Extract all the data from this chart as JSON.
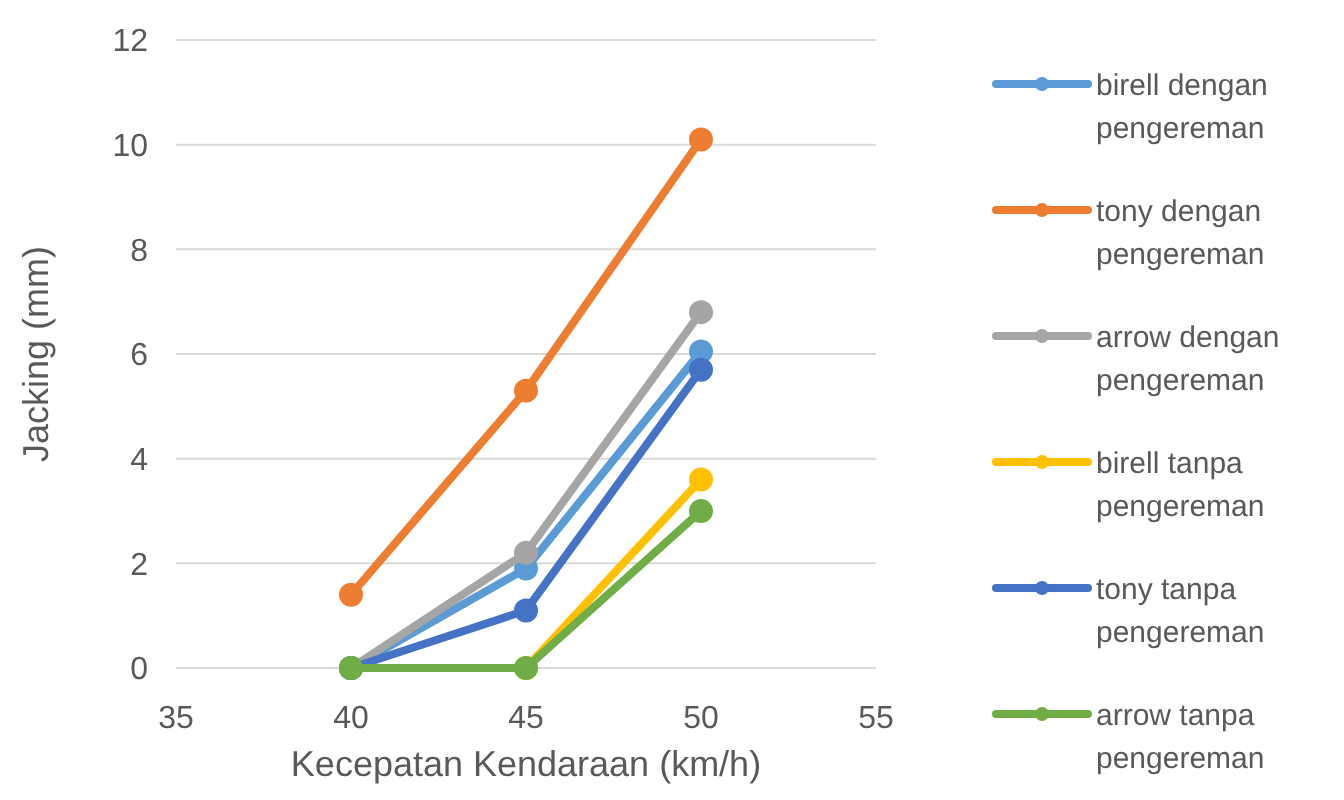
{
  "chart_data": {
    "type": "line",
    "xlabel": "Kecepatan Kendaraan (km/h)",
    "ylabel": "Jacking (mm)",
    "x": [
      40,
      45,
      50
    ],
    "xlim": [
      35,
      55
    ],
    "xticks": [
      35,
      40,
      45,
      50,
      55
    ],
    "ylim": [
      0,
      12
    ],
    "yticks": [
      0,
      2,
      4,
      6,
      8,
      10,
      12
    ],
    "grid": "y",
    "legend": "right",
    "marker": "circle",
    "line_style": "solid",
    "series": [
      {
        "name": "birell dengan pengereman",
        "color": "#5b9bd5",
        "values": [
          0,
          1.9,
          6.05
        ]
      },
      {
        "name": "tony dengan pengereman",
        "color": "#ed7d31",
        "values": [
          1.4,
          5.3,
          10.1
        ]
      },
      {
        "name": "arrow dengan pengereman",
        "color": "#a5a5a5",
        "values": [
          0,
          2.2,
          6.8
        ]
      },
      {
        "name": "birell tanpa pengereman",
        "color": "#ffc000",
        "values": [
          0,
          0,
          3.6
        ]
      },
      {
        "name": "tony tanpa pengereman",
        "color": "#4472c4",
        "values": [
          0,
          1.1,
          5.7
        ]
      },
      {
        "name": "arrow tanpa pengereman",
        "color": "#70ad47",
        "values": [
          0,
          0,
          3.0
        ]
      }
    ]
  }
}
